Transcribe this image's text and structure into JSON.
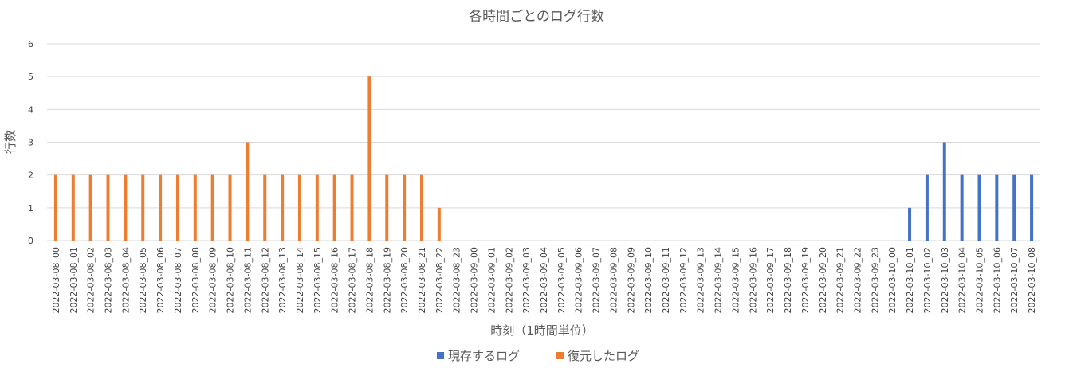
{
  "chart_data": {
    "type": "bar",
    "title": "各時間ごとのログ行数",
    "xlabel": "時刻（1時間単位）",
    "ylabel": "行数",
    "ylim": [
      0,
      6
    ],
    "yticks": [
      0,
      1,
      2,
      3,
      4,
      5,
      6
    ],
    "grid": true,
    "legend_position": "bottom",
    "categories": [
      "2022-03-08_00",
      "2022-03-08_01",
      "2022-03-08_02",
      "2022-03-08_03",
      "2022-03-08_04",
      "2022-03-08_05",
      "2022-03-08_06",
      "2022-03-08_07",
      "2022-03-08_08",
      "2022-03-08_09",
      "2022-03-08_10",
      "2022-03-08_11",
      "2022-03-08_12",
      "2022-03-08_13",
      "2022-03-08_14",
      "2022-03-08_15",
      "2022-03-08_16",
      "2022-03-08_17",
      "2022-03-08_18",
      "2022-03-08_19",
      "2022-03-08_20",
      "2022-03-08_21",
      "2022-03-08_22",
      "2022-03-08_23",
      "2022-03-09_00",
      "2022-03-09_01",
      "2022-03-09_02",
      "2022-03-09_03",
      "2022-03-09_04",
      "2022-03-09_05",
      "2022-03-09_06",
      "2022-03-09_07",
      "2022-03-09_08",
      "2022-03-09_09",
      "2022-03-09_10",
      "2022-03-09_11",
      "2022-03-09_12",
      "2022-03-09_13",
      "2022-03-09_14",
      "2022-03-09_15",
      "2022-03-09_16",
      "2022-03-09_17",
      "2022-03-09_18",
      "2022-03-09_19",
      "2022-03-09_20",
      "2022-03-09_21",
      "2022-03-09_22",
      "2022-03-09_23",
      "2022-03-10_00",
      "2022-03-10_01",
      "2022-03-10_02",
      "2022-03-10_03",
      "2022-03-10_04",
      "2022-03-10_05",
      "2022-03-10_06",
      "2022-03-10_07",
      "2022-03-10_08"
    ],
    "series": [
      {
        "name": "現存するログ",
        "color": "#4472c4",
        "values": [
          0,
          0,
          0,
          0,
          0,
          0,
          0,
          0,
          0,
          0,
          0,
          0,
          0,
          0,
          0,
          0,
          0,
          0,
          0,
          0,
          0,
          0,
          0,
          0,
          0,
          0,
          0,
          0,
          0,
          0,
          0,
          0,
          0,
          0,
          0,
          0,
          0,
          0,
          0,
          0,
          0,
          0,
          0,
          0,
          0,
          0,
          0,
          0,
          0,
          1,
          2,
          3,
          2,
          2,
          2,
          2,
          2
        ]
      },
      {
        "name": "復元したログ",
        "color": "#ed7d31",
        "values": [
          2,
          2,
          2,
          2,
          2,
          2,
          2,
          2,
          2,
          2,
          2,
          3,
          2,
          2,
          2,
          2,
          2,
          2,
          5,
          2,
          2,
          2,
          1,
          0,
          0,
          0,
          0,
          0,
          0,
          0,
          0,
          0,
          0,
          0,
          0,
          0,
          0,
          0,
          0,
          0,
          0,
          0,
          0,
          0,
          0,
          0,
          0,
          0,
          0,
          0,
          0,
          0,
          0,
          0,
          0,
          0,
          0
        ]
      }
    ]
  }
}
